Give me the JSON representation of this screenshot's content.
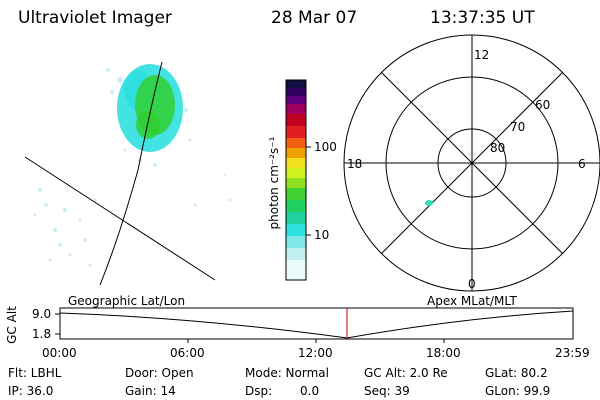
{
  "header": {
    "title": "Ultraviolet Imager",
    "date": "28 Mar 07",
    "time": "13:37:35 UT"
  },
  "colorbar": {
    "label": "photon cm⁻²s⁻¹",
    "ticks": [
      "100",
      "10"
    ]
  },
  "polar_plot": {
    "hour_labels": {
      "top": "12",
      "left": "18",
      "right": "6",
      "bottom": "0"
    },
    "lat_labels": [
      "60",
      "70",
      "80"
    ]
  },
  "map_labels": {
    "left": "Geographic Lat/Lon",
    "right": "Apex MLat/MLT"
  },
  "alt_plot": {
    "axis_label": "GC Alt",
    "y_ticks": [
      "9.0",
      "1.8"
    ],
    "x_ticks": [
      "00:00",
      "06:00",
      "12:00",
      "18:00",
      "23:59"
    ],
    "marker_color": "#c00000"
  },
  "status": {
    "flt": "Flt: LBHL",
    "door": "Door: Open",
    "mode": "Mode: Normal",
    "gc_alt": "GC Alt: 2.0 Re",
    "glat": "GLat: 80.2",
    "ip": "IP: 36.0",
    "gain": "Gain: 14",
    "dsp_label": "Dsp:",
    "dsp_value": "0.0",
    "seq": "Seq: 39",
    "glon": "GLon: 99.9"
  },
  "colors": {
    "cyan": "#30e0e0",
    "green": "#30d030",
    "light": "#c8ecec"
  }
}
